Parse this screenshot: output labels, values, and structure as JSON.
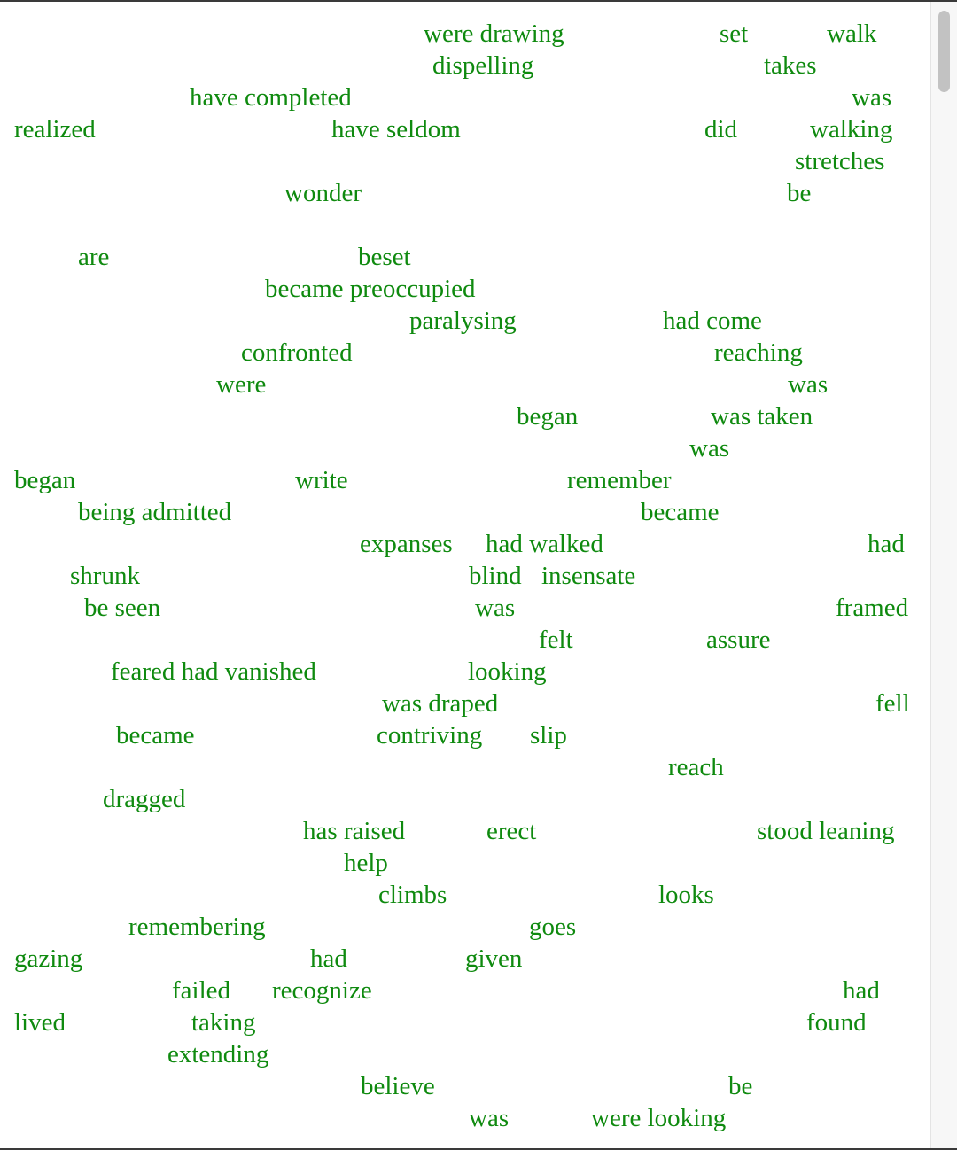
{
  "words": [
    "were drawing",
    "set",
    "walk",
    "dispelling",
    "takes",
    "have completed",
    "was",
    "realized",
    "have seldom",
    "did",
    "walking",
    "stretches",
    "wonder",
    "be",
    "are",
    "beset",
    "became preoccupied",
    "paralysing",
    "had come",
    "confronted",
    "reaching",
    "were",
    "was",
    "began",
    "was taken",
    "was",
    "began",
    "write",
    "remember",
    "being admitted",
    "became",
    "expanses",
    "had walked",
    "had",
    "shrunk",
    "blind",
    "insensate",
    "be seen",
    "was",
    "framed",
    "felt",
    "assure",
    "feared had vanished",
    "looking",
    "was draped",
    "fell",
    "became",
    "contriving",
    "slip",
    "reach",
    "dragged",
    "has raised",
    "erect",
    "stood leaning",
    "help",
    "climbs",
    "looks",
    "remembering",
    "goes",
    "gazing",
    "had",
    "given",
    "failed",
    "recognize",
    "had",
    "lived",
    "taking",
    "found",
    "extending",
    "believe",
    "be",
    "was",
    "were looking"
  ]
}
